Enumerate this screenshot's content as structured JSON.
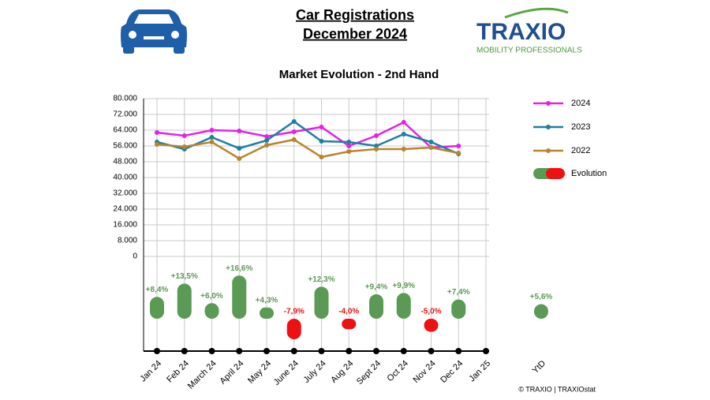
{
  "header": {
    "title": "Car Registrations",
    "subtitle": "December 2024",
    "logo": "TRAXIO",
    "logo_tagline": "MOBILITY PROFESSIONALS"
  },
  "chart_data": {
    "type": "line",
    "title": "Market Evolution - 2nd Hand",
    "categories": [
      "Jan 24",
      "Feb 24",
      "March 24",
      "April 24",
      "May 24",
      "June 24",
      "July 24",
      "Aug 24",
      "Sept 24",
      "Oct 24",
      "Nov 24",
      "Dec 24",
      "Jan 25"
    ],
    "ylim": [
      0,
      80000
    ],
    "yticks": [
      0,
      {
        "value": 8000,
        "label": "8.000"
      },
      {
        "value": 16000,
        "label": "16.000"
      },
      {
        "value": 24000,
        "label": "24.000"
      },
      {
        "value": 32000,
        "label": "32.000"
      },
      {
        "value": 40000,
        "label": "40.000"
      },
      {
        "value": 48000,
        "label": "48.000"
      },
      {
        "value": 56000,
        "label": "56.000"
      },
      {
        "value": 64000,
        "label": "64.000"
      },
      {
        "value": 72000,
        "label": "72.000"
      },
      {
        "value": 80000,
        "label": "80.000"
      }
    ],
    "grid": true,
    "series": [
      {
        "name": "2024",
        "color": "#e620e6",
        "values": [
          62800,
          61200,
          64000,
          63600,
          60800,
          63200,
          65600,
          56000,
          61200,
          68000,
          55200,
          56000,
          null
        ]
      },
      {
        "name": "2023",
        "color": "#1c7fa3",
        "values": [
          58000,
          54400,
          60400,
          54800,
          58800,
          68400,
          58400,
          58000,
          56000,
          62000,
          58000,
          52000,
          null
        ]
      },
      {
        "name": "2022",
        "color": "#b8842f",
        "values": [
          56800,
          55600,
          58000,
          49600,
          56400,
          59200,
          50400,
          53200,
          54400,
          54400,
          55200,
          52400,
          null
        ]
      }
    ],
    "evolution": {
      "name": "Evolution",
      "positive_color": "#5b9a55",
      "negative_color": "#ee1111",
      "values": [
        8.4,
        13.5,
        6.0,
        16.6,
        4.3,
        -7.9,
        12.3,
        -4.0,
        9.4,
        9.9,
        -5.0,
        7.4,
        null
      ],
      "value_labels": [
        "+8,4%",
        "+13,5%",
        "+6,0%",
        "+16,6%",
        "+4,3%",
        "-7,9%",
        "+12,3%",
        "-4,0%",
        "+9,4%",
        "+9,9%",
        "-5,0%",
        "+7,4%",
        null
      ]
    },
    "ytd": {
      "label": "YtD",
      "value": 5.6,
      "value_label": "+5,6%"
    },
    "source": "© TRAXIO | TRAXIOstat"
  }
}
